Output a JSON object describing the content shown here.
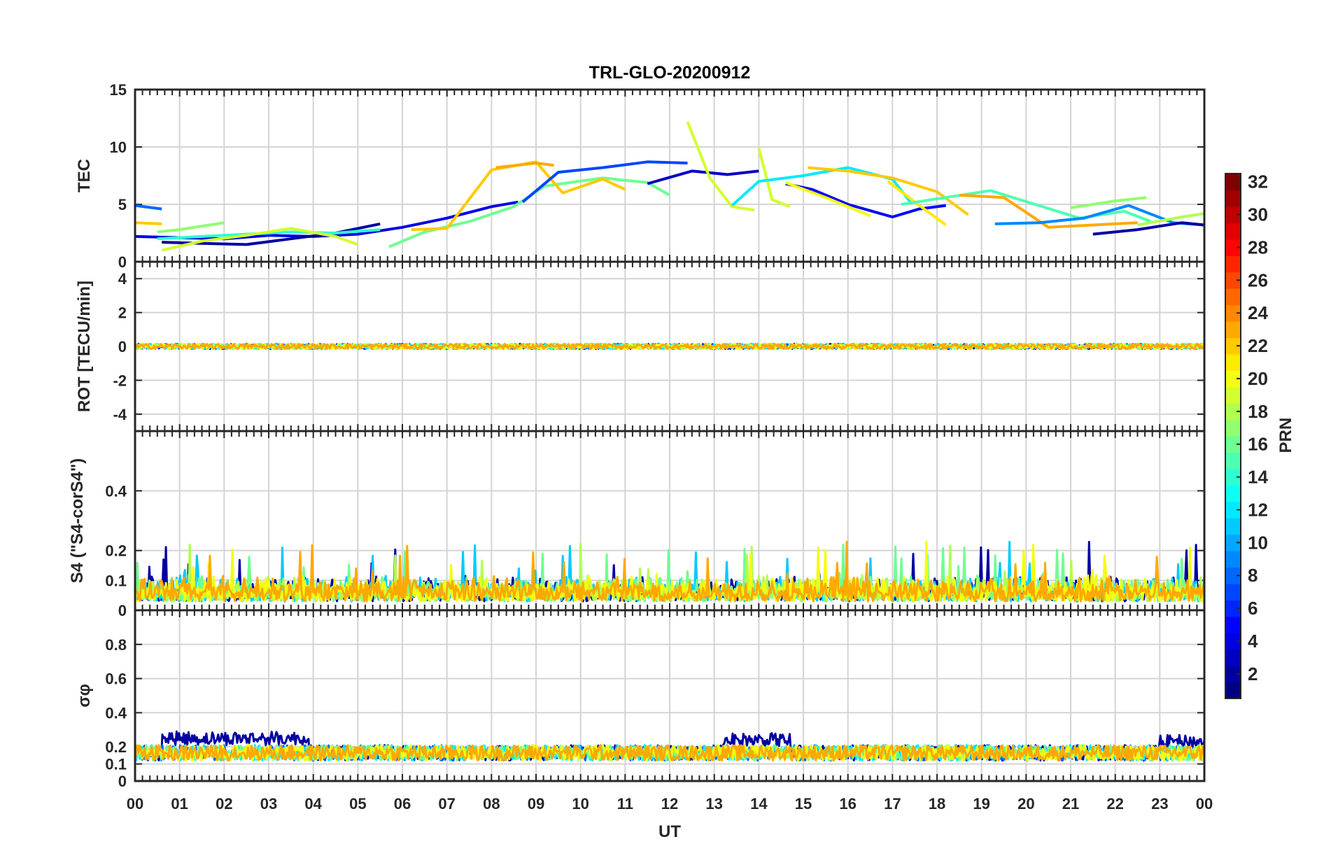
{
  "chart_data": {
    "type": "line",
    "title": "TRL-GLO-20200912",
    "xlabel": "UT",
    "xticks": [
      "00",
      "01",
      "02",
      "03",
      "04",
      "05",
      "06",
      "07",
      "08",
      "09",
      "10",
      "11",
      "12",
      "13",
      "14",
      "15",
      "16",
      "17",
      "18",
      "19",
      "20",
      "21",
      "22",
      "23",
      "00"
    ],
    "xlim": [
      0,
      24
    ],
    "grid": true,
    "colorbar": {
      "label": "PRN",
      "range": [
        1,
        32
      ],
      "ticks": [
        "2",
        "4",
        "6",
        "8",
        "10",
        "12",
        "14",
        "16",
        "18",
        "20",
        "22",
        "24",
        "26",
        "28",
        "30",
        "32"
      ],
      "colormap": "jet"
    },
    "panels": [
      {
        "name": "tec",
        "ylabel": "TEC",
        "ylim": [
          0,
          15
        ],
        "yticks": [
          "0",
          "5",
          "10",
          "15"
        ],
        "series": [
          {
            "prn": 4,
            "x": [
              0,
              1,
              2,
              3,
              4,
              5,
              6,
              7,
              8,
              8.6
            ],
            "y": [
              2.2,
              2.1,
              2.0,
              2.3,
              2.2,
              2.4,
              3.0,
              3.8,
              4.8,
              5.2
            ]
          },
          {
            "prn": 2,
            "x": [
              0.6,
              1.5,
              2.5,
              3.5,
              4.5,
              5.5
            ],
            "y": [
              1.7,
              1.6,
              1.5,
              2.0,
              2.5,
              3.3
            ]
          },
          {
            "prn": 8,
            "x": [
              0,
              0.6
            ],
            "y": [
              4.9,
              4.6
            ]
          },
          {
            "prn": 22,
            "x": [
              0,
              0.6
            ],
            "y": [
              3.4,
              3.3
            ]
          },
          {
            "prn": 14,
            "x": [
              0.5,
              1.5,
              2.5,
              3.5,
              4.5,
              5.5
            ],
            "y": [
              2.0,
              2.2,
              2.4,
              2.6,
              2.5,
              2.8
            ]
          },
          {
            "prn": 17,
            "x": [
              0.5,
              1,
              2
            ],
            "y": [
              2.6,
              2.8,
              3.4
            ]
          },
          {
            "prn": 19,
            "x": [
              0.6,
              1.5,
              2.5,
              3.5,
              4.5,
              5.0
            ],
            "y": [
              1.0,
              1.8,
              2.3,
              2.9,
              2.2,
              1.5
            ]
          },
          {
            "prn": 16,
            "x": [
              5.7,
              6.5,
              7.5,
              8.5,
              9.2,
              10.5,
              11.5,
              12.0
            ],
            "y": [
              1.3,
              2.6,
              3.5,
              4.8,
              6.6,
              7.3,
              6.9,
              5.8
            ]
          },
          {
            "prn": 22,
            "x": [
              6.2,
              7,
              8,
              9,
              9.6,
              10.5,
              11.0
            ],
            "y": [
              2.8,
              2.9,
              8.0,
              8.7,
              6.0,
              7.2,
              6.3
            ]
          },
          {
            "prn": 23,
            "x": [
              8.1,
              9.0,
              9.4
            ],
            "y": [
              8.2,
              8.6,
              8.4
            ]
          },
          {
            "prn": 7,
            "x": [
              8.7,
              9.5,
              10.5,
              11.5,
              12.4
            ],
            "y": [
              5.2,
              7.8,
              8.2,
              8.7,
              8.6
            ]
          },
          {
            "prn": 3,
            "x": [
              11.5,
              12.5,
              13.3,
              14.0
            ],
            "y": [
              6.8,
              7.9,
              7.6,
              7.9
            ]
          },
          {
            "prn": 19,
            "x": [
              12.4,
              12.9,
              13.4,
              13.9
            ],
            "y": [
              12.2,
              7.3,
              4.8,
              4.5
            ]
          },
          {
            "prn": 19,
            "x": [
              14.0,
              14.3,
              14.7
            ],
            "y": [
              9.9,
              5.4,
              4.8
            ]
          },
          {
            "prn": 12,
            "x": [
              13.4,
              14.0,
              15.0,
              16.0,
              17.0,
              17.4
            ],
            "y": [
              4.9,
              7.0,
              7.5,
              8.2,
              7.2,
              5.2
            ]
          },
          {
            "prn": 5,
            "x": [
              14.6,
              15.2,
              16,
              17,
              17.6,
              18.2
            ],
            "y": [
              6.8,
              6.3,
              5.0,
              3.9,
              4.6,
              4.9
            ]
          },
          {
            "prn": 22,
            "x": [
              15.1,
              16,
              17,
              18,
              18.7
            ],
            "y": [
              8.2,
              7.9,
              7.3,
              6.1,
              4.1
            ]
          },
          {
            "prn": 20,
            "x": [
              14.6,
              15.5,
              16.5
            ],
            "y": [
              6.9,
              5.6,
              4.0
            ]
          },
          {
            "prn": 21,
            "x": [
              16.9,
              17.5,
              18.2
            ],
            "y": [
              7.0,
              5.2,
              3.2
            ]
          },
          {
            "prn": 15,
            "x": [
              17.2,
              18.2,
              19.2,
              20.2,
              21.2,
              22.2,
              22.8
            ],
            "y": [
              5.0,
              5.6,
              6.2,
              5.0,
              3.8,
              4.4,
              3.5
            ]
          },
          {
            "prn": 23,
            "x": [
              18.5,
              19.5,
              20.5,
              21.5,
              22.5
            ],
            "y": [
              5.8,
              5.6,
              3.0,
              3.2,
              3.4
            ]
          },
          {
            "prn": 9,
            "x": [
              19.3,
              20.3,
              21.3,
              22.3,
              23.3,
              24.0
            ],
            "y": [
              3.3,
              3.4,
              3.8,
              4.9,
              3.4,
              3.2
            ]
          },
          {
            "prn": 2,
            "x": [
              21.5,
              22.5,
              23.5,
              24.0
            ],
            "y": [
              2.4,
              2.8,
              3.4,
              3.2
            ]
          },
          {
            "prn": 17,
            "x": [
              21.0,
              22.0,
              22.7
            ],
            "y": [
              4.7,
              5.3,
              5.6
            ]
          },
          {
            "prn": 18,
            "x": [
              22.5,
              23.5,
              24.0
            ],
            "y": [
              3.2,
              3.9,
              4.2
            ]
          }
        ]
      },
      {
        "name": "rot",
        "ylabel": "ROT [TECU/min]",
        "ylim": [
          -5,
          5
        ],
        "yticks": [
          "-4",
          "-2",
          "0",
          "2",
          "4"
        ],
        "noise_band": {
          "center": 0,
          "amplitude": 0.15,
          "prns": [
            4,
            8,
            12,
            16,
            20,
            23
          ]
        }
      },
      {
        "name": "s4",
        "ylabel": "S4 (\"S4-corS4\")",
        "ylim": [
          0,
          0.6
        ],
        "yticks": [
          "0",
          "0.1",
          "0.2",
          "0.4"
        ],
        "noise_band": {
          "base": 0.03,
          "typical_max": 0.12,
          "peak_max": 0.23,
          "prns": [
            2,
            11,
            16,
            18,
            20,
            23
          ]
        }
      },
      {
        "name": "sigma_phi",
        "ylabel": "σφ",
        "ylim": [
          0,
          1
        ],
        "yticks": [
          "0",
          "0.1",
          "0.2",
          "0.4",
          "0.6",
          "0.8"
        ],
        "noise_band": {
          "base": 0.15,
          "typical_max": 0.2,
          "elevated_prn2": [
            [
              0.6,
              3.9,
              0.24
            ],
            [
              13.2,
              14.7,
              0.23
            ],
            [
              23,
              24,
              0.22
            ]
          ],
          "prns": [
            2,
            8,
            12,
            16,
            20,
            23
          ]
        }
      }
    ]
  }
}
